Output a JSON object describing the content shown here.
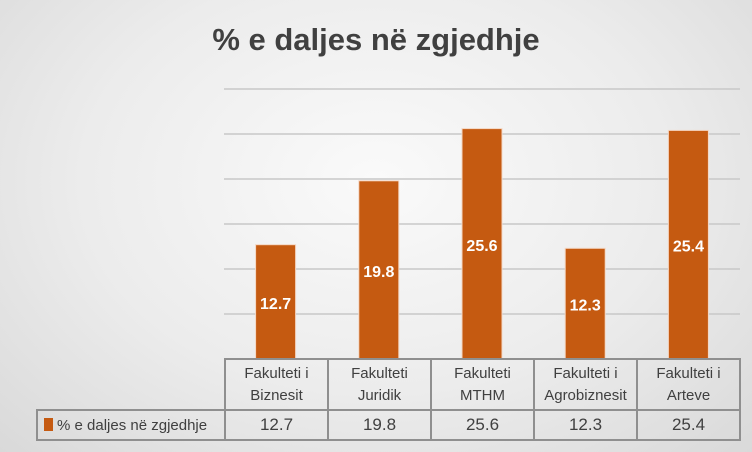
{
  "chart_data": {
    "type": "bar",
    "title": "% e daljes në zgjedhje",
    "categories": [
      "Fakulteti i Biznesit",
      "Fakulteti Juridik",
      "Fakulteti MTHM",
      "Fakulteti i Agrobiznesit",
      "Fakulteti i Arteve"
    ],
    "category_lines": [
      [
        "Fakulteti i",
        "Biznesit"
      ],
      [
        "Fakulteti",
        "Juridik"
      ],
      [
        "Fakulteti",
        "MTHM"
      ],
      [
        "Fakulteti i",
        "Agrobiznesit"
      ],
      [
        "Fakulteti i",
        "Arteve"
      ]
    ],
    "series": [
      {
        "name": "% e daljes në zgjedhje",
        "values": [
          12.7,
          19.8,
          25.6,
          12.3,
          25.4
        ],
        "labels": [
          "12.7",
          "19.8",
          "25.6",
          "12.3",
          "25.4"
        ],
        "color": "#c55a11"
      }
    ],
    "ylim": [
      0,
      30
    ],
    "grid": true,
    "legend": "data-table",
    "xlabel": "",
    "ylabel": ""
  }
}
